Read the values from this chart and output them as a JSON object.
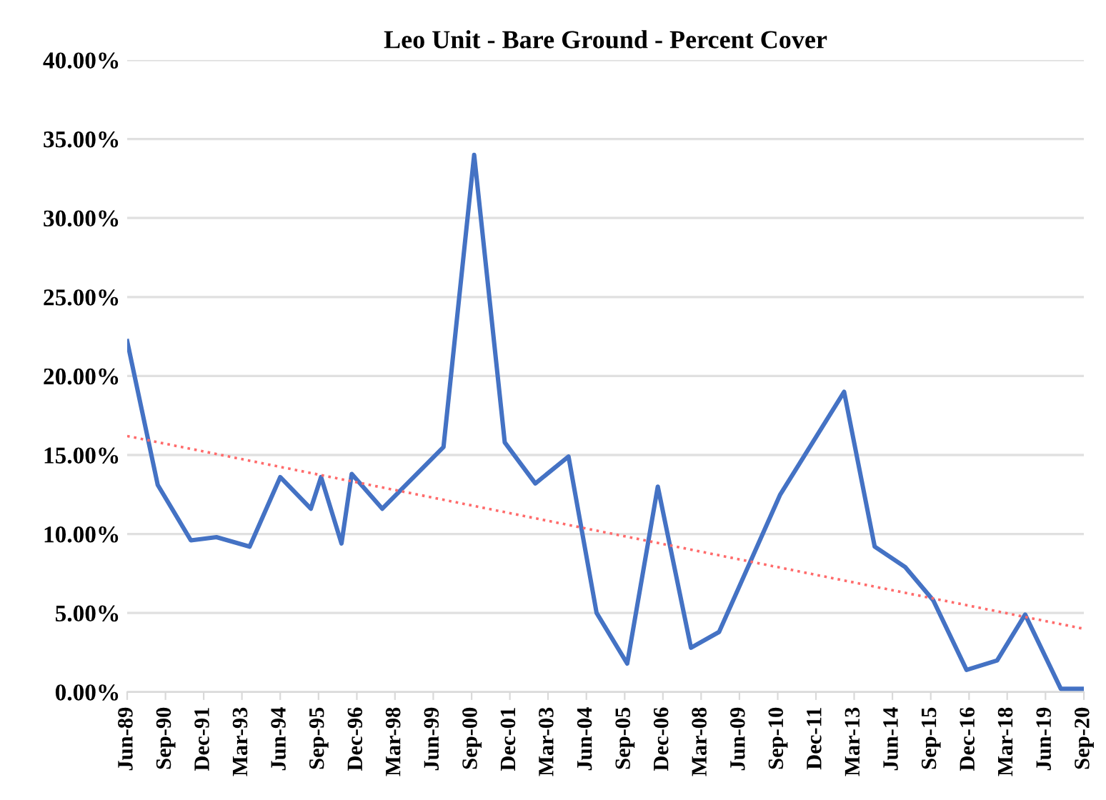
{
  "chart_data": {
    "type": "line",
    "title": "Leo Unit - Bare Ground - Percent Cover",
    "series": [
      {
        "color": "#4472c4",
        "x": [
          "1989-06",
          "1990-06",
          "1991-07",
          "1992-05",
          "1993-06",
          "1994-06",
          "1995-06",
          "1995-10",
          "1996-06",
          "1996-10",
          "1997-10",
          "1999-10",
          "2000-10",
          "2001-10",
          "2002-10",
          "2003-11",
          "2004-10",
          "2005-10",
          "2006-10",
          "2007-11",
          "2008-10",
          "2010-10",
          "2012-11",
          "2013-11",
          "2014-11",
          "2015-10",
          "2016-11",
          "2017-11",
          "2018-10",
          "2019-12",
          "2020-09"
        ],
        "values": [
          22.2,
          13.1,
          9.6,
          9.8,
          9.2,
          13.6,
          11.6,
          13.6,
          9.4,
          13.8,
          11.6,
          15.5,
          34.0,
          15.8,
          13.2,
          14.9,
          5.0,
          1.8,
          13.0,
          2.8,
          3.8,
          12.5,
          19.0,
          9.2,
          7.9,
          5.8,
          1.4,
          2.0,
          4.9,
          0.2,
          0.2
        ]
      },
      {
        "color": "#ff6b6b",
        "line_style": "dotted",
        "x": [
          "1989-06",
          "2020-09"
        ],
        "values": [
          16.2,
          4.0
        ]
      }
    ],
    "xlim": [
      "1989-06",
      "2020-09"
    ],
    "xticks": [
      {
        "value": "1989-06",
        "label": "Jun-89"
      },
      {
        "value": "1990-09",
        "label": "Sep-90"
      },
      {
        "value": "1991-12",
        "label": "Dec-91"
      },
      {
        "value": "1993-03",
        "label": "Mar-93"
      },
      {
        "value": "1994-06",
        "label": "Jun-94"
      },
      {
        "value": "1995-09",
        "label": "Sep-95"
      },
      {
        "value": "1996-12",
        "label": "Dec-96"
      },
      {
        "value": "1998-03",
        "label": "Mar-98"
      },
      {
        "value": "1999-06",
        "label": "Jun-99"
      },
      {
        "value": "2000-09",
        "label": "Sep-00"
      },
      {
        "value": "2001-12",
        "label": "Dec-01"
      },
      {
        "value": "2003-03",
        "label": "Mar-03"
      },
      {
        "value": "2004-06",
        "label": "Jun-04"
      },
      {
        "value": "2005-09",
        "label": "Sep-05"
      },
      {
        "value": "2006-12",
        "label": "Dec-06"
      },
      {
        "value": "2008-03",
        "label": "Mar-08"
      },
      {
        "value": "2009-06",
        "label": "Jun-09"
      },
      {
        "value": "2010-09",
        "label": "Sep-10"
      },
      {
        "value": "2011-12",
        "label": "Dec-11"
      },
      {
        "value": "2013-03",
        "label": "Mar-13"
      },
      {
        "value": "2014-06",
        "label": "Jun-14"
      },
      {
        "value": "2015-09",
        "label": "Sep-15"
      },
      {
        "value": "2016-12",
        "label": "Dec-16"
      },
      {
        "value": "2018-03",
        "label": "Mar-18"
      },
      {
        "value": "2019-06",
        "label": "Jun-19"
      },
      {
        "value": "2020-09",
        "label": "Sep-20"
      }
    ],
    "ylim": [
      0,
      40
    ],
    "yticks": [
      {
        "value": 0,
        "label": "0.00%"
      },
      {
        "value": 5,
        "label": "5.00%"
      },
      {
        "value": 10,
        "label": "10.00%"
      },
      {
        "value": 15,
        "label": "15.00%"
      },
      {
        "value": 20,
        "label": "20.00%"
      },
      {
        "value": 25,
        "label": "25.00%"
      },
      {
        "value": 30,
        "label": "30.00%"
      },
      {
        "value": 35,
        "label": "35.00%"
      },
      {
        "value": 40,
        "label": "40.00%"
      }
    ],
    "grid": "y",
    "legend": false,
    "marker": "none",
    "line_style": "solid"
  }
}
